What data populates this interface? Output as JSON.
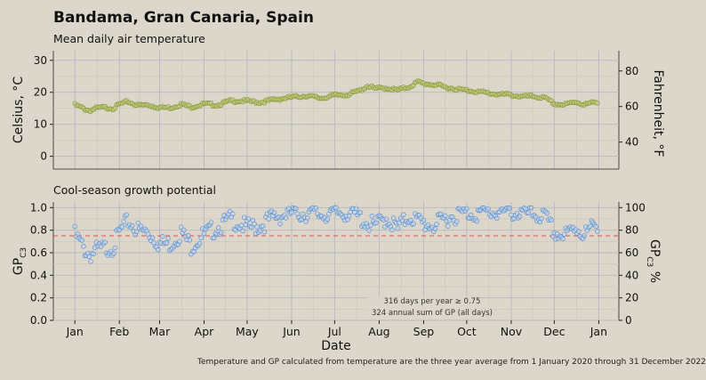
{
  "title": "Bandama, Gran Canaria, Spain",
  "caption": "Temperature and GP calculated from temperature are the three year average from 1 January 2020 through 31 December 2022",
  "chart_data": [
    {
      "type": "scatter",
      "title": "Mean daily air temperature",
      "ylabel": "Celsius, °C",
      "ylabel_right": "Fahrenheit, °F",
      "ylim": [
        -4,
        33
      ],
      "yticks": [
        0,
        10,
        20,
        30
      ],
      "yticks_right": [
        40,
        60,
        80
      ],
      "x_months": [
        "Jan",
        "Feb",
        "Mar",
        "Apr",
        "May",
        "Jun",
        "Jul",
        "Aug",
        "Sep",
        "Oct",
        "Nov",
        "Dec",
        "Jan"
      ],
      "x_month_days": [
        1,
        32,
        60,
        91,
        121,
        152,
        182,
        213,
        244,
        274,
        305,
        335,
        366
      ],
      "grid": true,
      "marker_color": "#8a9a3a",
      "anchors_day": [
        1,
        6,
        11,
        16,
        22,
        28,
        32,
        38,
        45,
        52,
        60,
        68,
        75,
        82,
        91,
        100,
        110,
        121,
        130,
        140,
        152,
        162,
        172,
        182,
        192,
        200,
        205,
        210,
        218,
        226,
        234,
        240,
        244,
        252,
        260,
        268,
        274,
        282,
        290,
        298,
        305,
        312,
        320,
        328,
        335,
        342,
        350,
        356,
        365
      ],
      "anchors_value": [
        16.3,
        15.4,
        14.5,
        15.3,
        15.5,
        15.3,
        16.5,
        17.3,
        16.2,
        16.3,
        15.5,
        15.5,
        16.5,
        15.7,
        16.6,
        16.3,
        17.6,
        17.5,
        17.1,
        18.0,
        18.7,
        19.2,
        18.4,
        19.3,
        19.6,
        20.9,
        22.3,
        21.4,
        21.6,
        20.9,
        22.0,
        23.5,
        23.0,
        22.6,
        21.8,
        21.2,
        20.9,
        20.5,
        19.9,
        19.6,
        19.5,
        18.9,
        19.0,
        18.5,
        16.7,
        16.3,
        17.3,
        16.4,
        17.3
      ]
    },
    {
      "type": "scatter",
      "title": "Cool-season growth potential",
      "xlabel": "Date",
      "ylabel": "GP",
      "ylabel_sub": "C3",
      "ylabel_right": "GP",
      "ylabel_right_sub": "C3",
      "ylabel_right_suffix": " %",
      "ylim": [
        0,
        1.05
      ],
      "yticks": [
        "0.0",
        "0.2",
        "0.4",
        "0.6",
        "0.8",
        "1.0"
      ],
      "yticks_right": [
        "0",
        "20",
        "40",
        "60",
        "80",
        "100"
      ],
      "threshold": 0.75,
      "threshold_color": "#e05050",
      "marker_color": "#5b8fd0",
      "anchors_day": [
        1,
        6,
        11,
        16,
        22,
        28,
        32,
        38,
        45,
        52,
        60,
        68,
        75,
        82,
        91,
        100,
        110,
        121,
        130,
        140,
        152,
        162,
        172,
        182,
        192,
        200,
        205,
        210,
        218,
        226,
        234,
        240,
        244,
        252,
        260,
        268,
        274,
        282,
        290,
        298,
        305,
        312,
        320,
        328,
        335,
        342,
        350,
        356,
        365
      ],
      "anchors_value": [
        0.8,
        0.7,
        0.62,
        0.66,
        0.68,
        0.7,
        0.82,
        0.92,
        0.84,
        0.82,
        0.72,
        0.72,
        0.82,
        0.7,
        0.8,
        0.86,
        0.94,
        0.86,
        0.88,
        0.96,
        0.99,
        0.99,
        0.98,
        0.99,
        1.0,
        0.95,
        0.9,
        0.88,
        0.95,
        0.85,
        0.97,
        0.92,
        0.9,
        0.88,
        0.95,
        0.98,
        0.99,
        0.99,
        1.0,
        1.0,
        1.0,
        0.99,
        0.98,
        0.96,
        0.82,
        0.78,
        0.87,
        0.8,
        0.9
      ],
      "annotation_1": "316 days per year ≥ 0.75",
      "annotation_2": "324 annual sum of GP (all days)"
    }
  ]
}
